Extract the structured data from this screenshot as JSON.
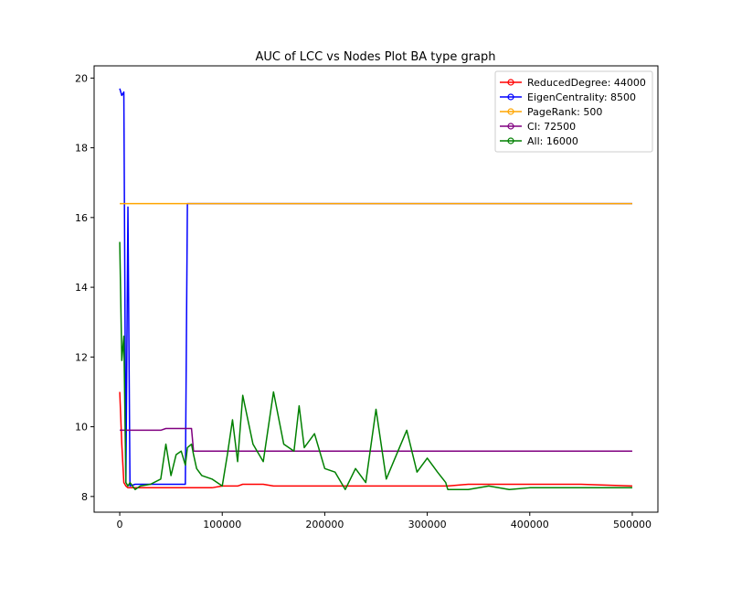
{
  "chart_data": {
    "type": "line",
    "title": "AUC of LCC vs Nodes Plot BA type graph",
    "x": [
      0,
      2000,
      4000,
      6000,
      8000,
      10000,
      15000,
      20000,
      30000,
      40000,
      45000,
      50000,
      55000,
      60000,
      64000,
      66000,
      70000,
      72000,
      75000,
      80000,
      90000,
      100000,
      105000,
      110000,
      115000,
      120000,
      130000,
      140000,
      150000,
      160000,
      170000,
      175000,
      180000,
      190000,
      200000,
      210000,
      220000,
      230000,
      240000,
      250000,
      260000,
      270000,
      280000,
      290000,
      300000,
      310000,
      318000,
      320000,
      340000,
      360000,
      380000,
      400000,
      450000,
      500000
    ],
    "series": [
      {
        "name": "ReducedDegree: 44000",
        "color": "#ff0000",
        "values": [
          11,
          9.5,
          8.4,
          8.3,
          8.25,
          8.25,
          8.25,
          8.25,
          8.25,
          8.25,
          8.25,
          8.25,
          8.25,
          8.25,
          8.25,
          8.25,
          8.25,
          8.25,
          8.25,
          8.25,
          8.25,
          8.3,
          8.3,
          8.3,
          8.3,
          8.35,
          8.35,
          8.35,
          8.3,
          8.3,
          8.3,
          8.3,
          8.3,
          8.3,
          8.3,
          8.3,
          8.3,
          8.3,
          8.3,
          8.3,
          8.3,
          8.3,
          8.3,
          8.3,
          8.3,
          8.3,
          8.3,
          8.3,
          8.35,
          8.35,
          8.35,
          8.35,
          8.35,
          8.3
        ]
      },
      {
        "name": "EigenCentrality: 8500",
        "color": "#0000ff",
        "values": [
          19.7,
          19.5,
          19.6,
          8.4,
          16.3,
          8.3,
          8.35,
          8.35,
          8.35,
          8.35,
          8.35,
          8.35,
          8.35,
          8.35,
          8.35,
          16.4,
          16.4,
          16.4,
          16.4,
          16.4,
          16.4,
          16.4,
          16.4,
          16.4,
          16.4,
          16.4,
          16.4,
          16.4,
          16.4,
          16.4,
          16.4,
          16.4,
          16.4,
          16.4,
          16.4,
          16.4,
          16.4,
          16.4,
          16.4,
          16.4,
          16.4,
          16.4,
          16.4,
          16.4,
          16.4,
          16.4,
          16.4,
          16.4,
          16.4,
          16.4,
          16.4,
          16.4,
          16.4,
          16.4
        ]
      },
      {
        "name": "PageRank: 500",
        "color": "#ffa500",
        "values": [
          16.4,
          16.4,
          16.4,
          16.4,
          16.4,
          16.4,
          16.4,
          16.4,
          16.4,
          16.4,
          16.4,
          16.4,
          16.4,
          16.4,
          16.4,
          16.4,
          16.4,
          16.4,
          16.4,
          16.4,
          16.4,
          16.4,
          16.4,
          16.4,
          16.4,
          16.4,
          16.4,
          16.4,
          16.4,
          16.4,
          16.4,
          16.4,
          16.4,
          16.4,
          16.4,
          16.4,
          16.4,
          16.4,
          16.4,
          16.4,
          16.4,
          16.4,
          16.4,
          16.4,
          16.4,
          16.4,
          16.4,
          16.4,
          16.4,
          16.4,
          16.4,
          16.4,
          16.4,
          16.4
        ]
      },
      {
        "name": "CI: 72500",
        "color": "#800080",
        "values": [
          9.9,
          9.9,
          9.9,
          9.9,
          9.9,
          9.9,
          9.9,
          9.9,
          9.9,
          9.9,
          9.95,
          9.95,
          9.95,
          9.95,
          9.95,
          9.95,
          9.95,
          9.3,
          9.3,
          9.3,
          9.3,
          9.3,
          9.3,
          9.3,
          9.3,
          9.3,
          9.3,
          9.3,
          9.3,
          9.3,
          9.3,
          9.3,
          9.3,
          9.3,
          9.3,
          9.3,
          9.3,
          9.3,
          9.3,
          9.3,
          9.3,
          9.3,
          9.3,
          9.3,
          9.3,
          9.3,
          9.3,
          9.3,
          9.3,
          9.3,
          9.3,
          9.3,
          9.3,
          9.3
        ]
      },
      {
        "name": "All: 16000",
        "color": "#008000",
        "values": [
          15.3,
          11.9,
          12.6,
          8.4,
          8.3,
          8.4,
          8.2,
          8.3,
          8.35,
          8.5,
          9.5,
          8.6,
          9.2,
          9.3,
          8.9,
          9.4,
          9.5,
          9.2,
          8.8,
          8.6,
          8.5,
          8.3,
          9.2,
          10.2,
          9.0,
          10.9,
          9.5,
          9.0,
          11.0,
          9.5,
          9.3,
          10.6,
          9.4,
          9.8,
          8.8,
          8.7,
          8.2,
          8.8,
          8.4,
          10.5,
          8.5,
          9.2,
          9.9,
          8.7,
          9.1,
          8.7,
          8.4,
          8.2,
          8.2,
          8.3,
          8.2,
          8.25,
          8.25,
          8.25
        ]
      }
    ],
    "xlim": [
      -25000,
      525000
    ],
    "ylim": [
      7.55,
      20.35
    ],
    "xticks": [
      0,
      100000,
      200000,
      300000,
      400000,
      500000
    ],
    "yticks": [
      8,
      10,
      12,
      14,
      16,
      18,
      20
    ],
    "legend": "upper right",
    "grid": false
  }
}
